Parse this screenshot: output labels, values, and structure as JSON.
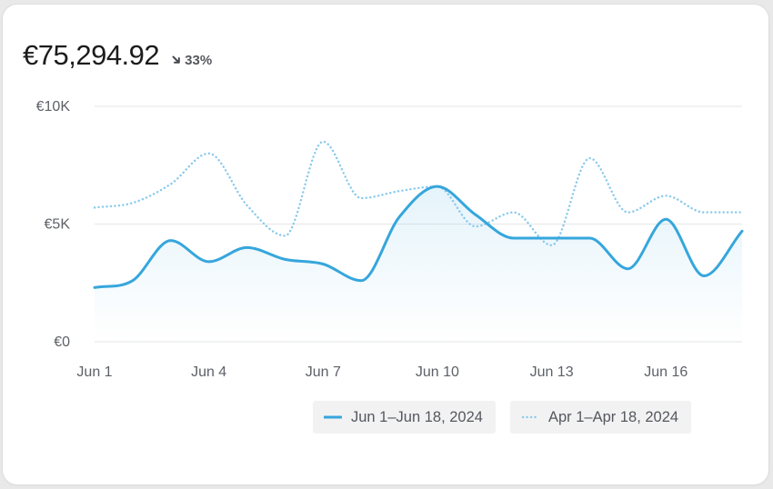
{
  "header": {
    "total": "€75,294.92",
    "change": "33%",
    "change_icon": "arrow-down-right-icon"
  },
  "colors": {
    "current": "#36a6dc",
    "previous": "#88c9ec",
    "grid": "#e6e6e8",
    "text": "#5e6168"
  },
  "chart_data": {
    "type": "line",
    "title": "",
    "xlabel": "",
    "ylabel": "",
    "ylim": [
      0,
      10000
    ],
    "yticks": [
      {
        "value": 0,
        "label": "€0"
      },
      {
        "value": 5000,
        "label": "€5K"
      },
      {
        "value": 10000,
        "label": "€10K"
      }
    ],
    "x": [
      "Jun 1",
      "Jun 2",
      "Jun 3",
      "Jun 4",
      "Jun 5",
      "Jun 6",
      "Jun 7",
      "Jun 8",
      "Jun 9",
      "Jun 10",
      "Jun 11",
      "Jun 12",
      "Jun 13",
      "Jun 14",
      "Jun 15",
      "Jun 16",
      "Jun 17",
      "Jun 18"
    ],
    "xticks": [
      {
        "index": 0,
        "label": "Jun 1"
      },
      {
        "index": 3,
        "label": "Jun 4"
      },
      {
        "index": 6,
        "label": "Jun 7"
      },
      {
        "index": 9,
        "label": "Jun 10"
      },
      {
        "index": 12,
        "label": "Jun 13"
      },
      {
        "index": 15,
        "label": "Jun 16"
      }
    ],
    "grid": true,
    "legend_position": "bottom-right",
    "series": [
      {
        "name": "Jun 1–Jun 18, 2024",
        "style": "solid",
        "values": [
          2300,
          2600,
          4300,
          3400,
          4000,
          3500,
          3300,
          2600,
          5300,
          6600,
          5400,
          4400,
          4400,
          4400,
          3100,
          5200,
          2800,
          4700
        ]
      },
      {
        "name": "Apr 1–Apr 18, 2024",
        "style": "dotted",
        "values": [
          5700,
          5900,
          6700,
          8000,
          5800,
          4500,
          8500,
          6100,
          6400,
          6600,
          4900,
          5500,
          4100,
          7800,
          5500,
          6200,
          5500,
          5500
        ]
      }
    ]
  }
}
